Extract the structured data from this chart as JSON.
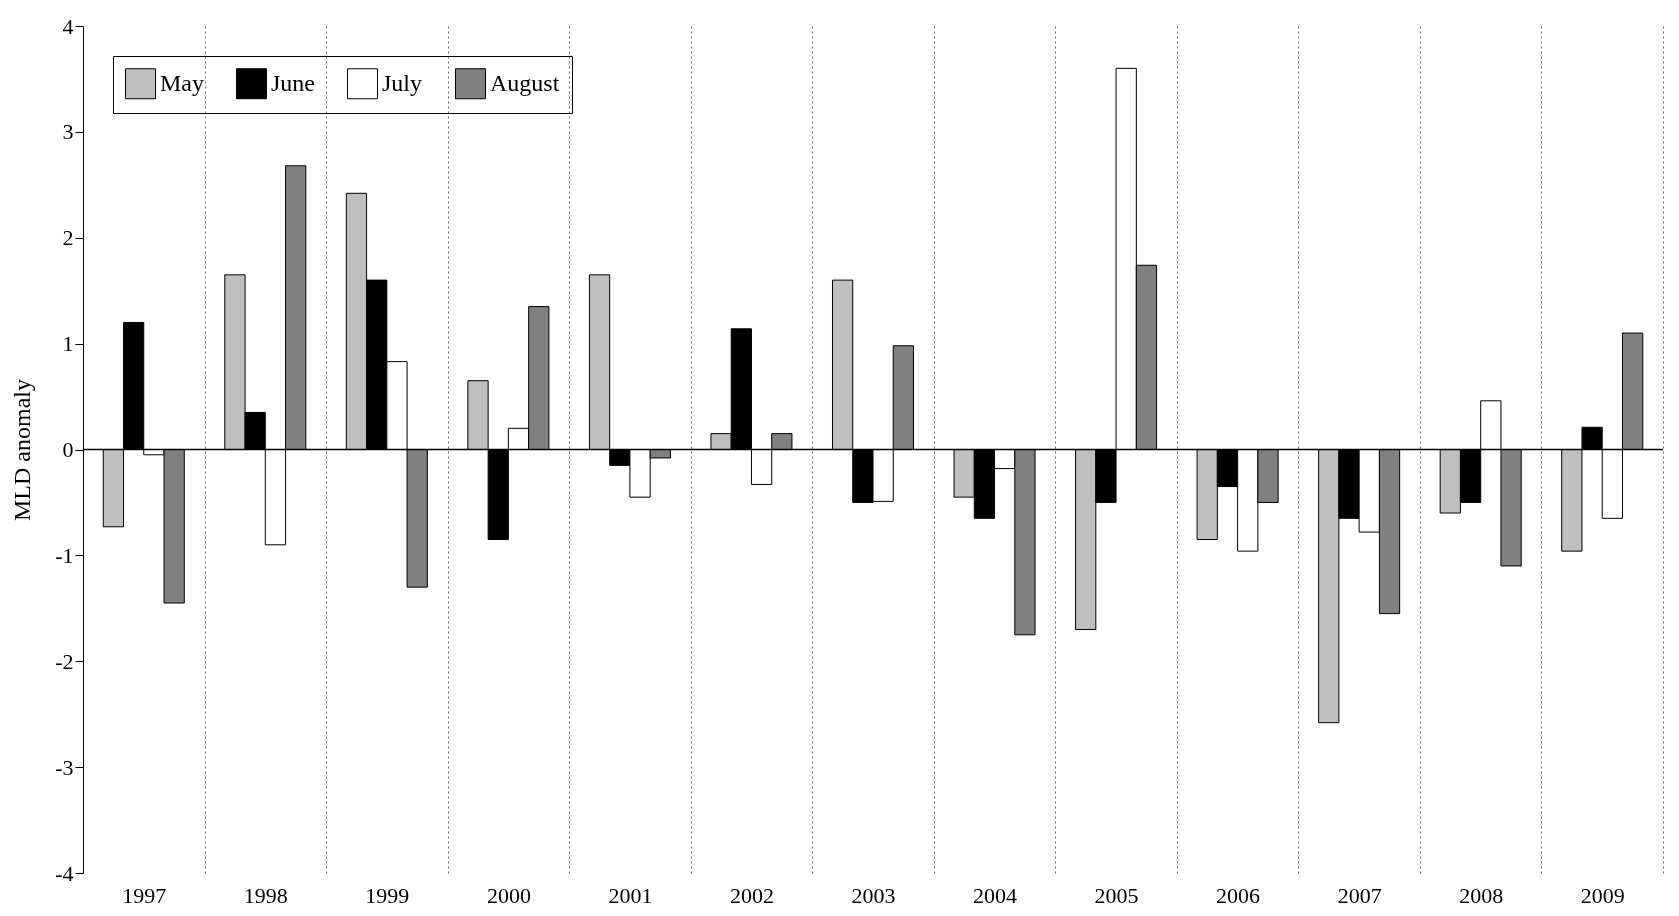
{
  "chart_data": {
    "type": "bar",
    "ylabel": "MLD anomaly",
    "categories": [
      "1997",
      "1998",
      "1999",
      "2000",
      "2001",
      "2002",
      "2003",
      "2004",
      "2005",
      "2006",
      "2007",
      "2008",
      "2009"
    ],
    "series": [
      {
        "name": "May",
        "color": "#bfbfbf",
        "values": [
          -0.73,
          1.65,
          2.42,
          0.65,
          1.65,
          0.15,
          1.6,
          -0.45,
          -1.7,
          -0.85,
          -2.58,
          -0.6,
          -0.96
        ]
      },
      {
        "name": "June",
        "color": "#000000",
        "values": [
          1.2,
          0.35,
          1.6,
          -0.85,
          -0.15,
          1.14,
          -0.5,
          -0.65,
          -0.5,
          -0.35,
          -0.65,
          -0.5,
          0.21
        ]
      },
      {
        "name": "July",
        "color": "#ffffff",
        "values": [
          -0.05,
          -0.9,
          0.83,
          0.2,
          -0.45,
          -0.33,
          -0.49,
          -0.18,
          3.6,
          -0.96,
          -0.78,
          0.46,
          -0.65
        ]
      },
      {
        "name": "August",
        "color": "#808080",
        "values": [
          -1.45,
          2.68,
          -1.3,
          1.35,
          -0.08,
          0.15,
          0.98,
          -1.75,
          1.74,
          -0.5,
          -1.55,
          -1.1,
          1.1
        ]
      }
    ],
    "ylim": [
      -4,
      4
    ],
    "yticks": [
      -4,
      -3,
      -2,
      -1,
      0,
      1,
      2,
      3,
      4
    ],
    "grid": "x",
    "legend": "top left"
  }
}
